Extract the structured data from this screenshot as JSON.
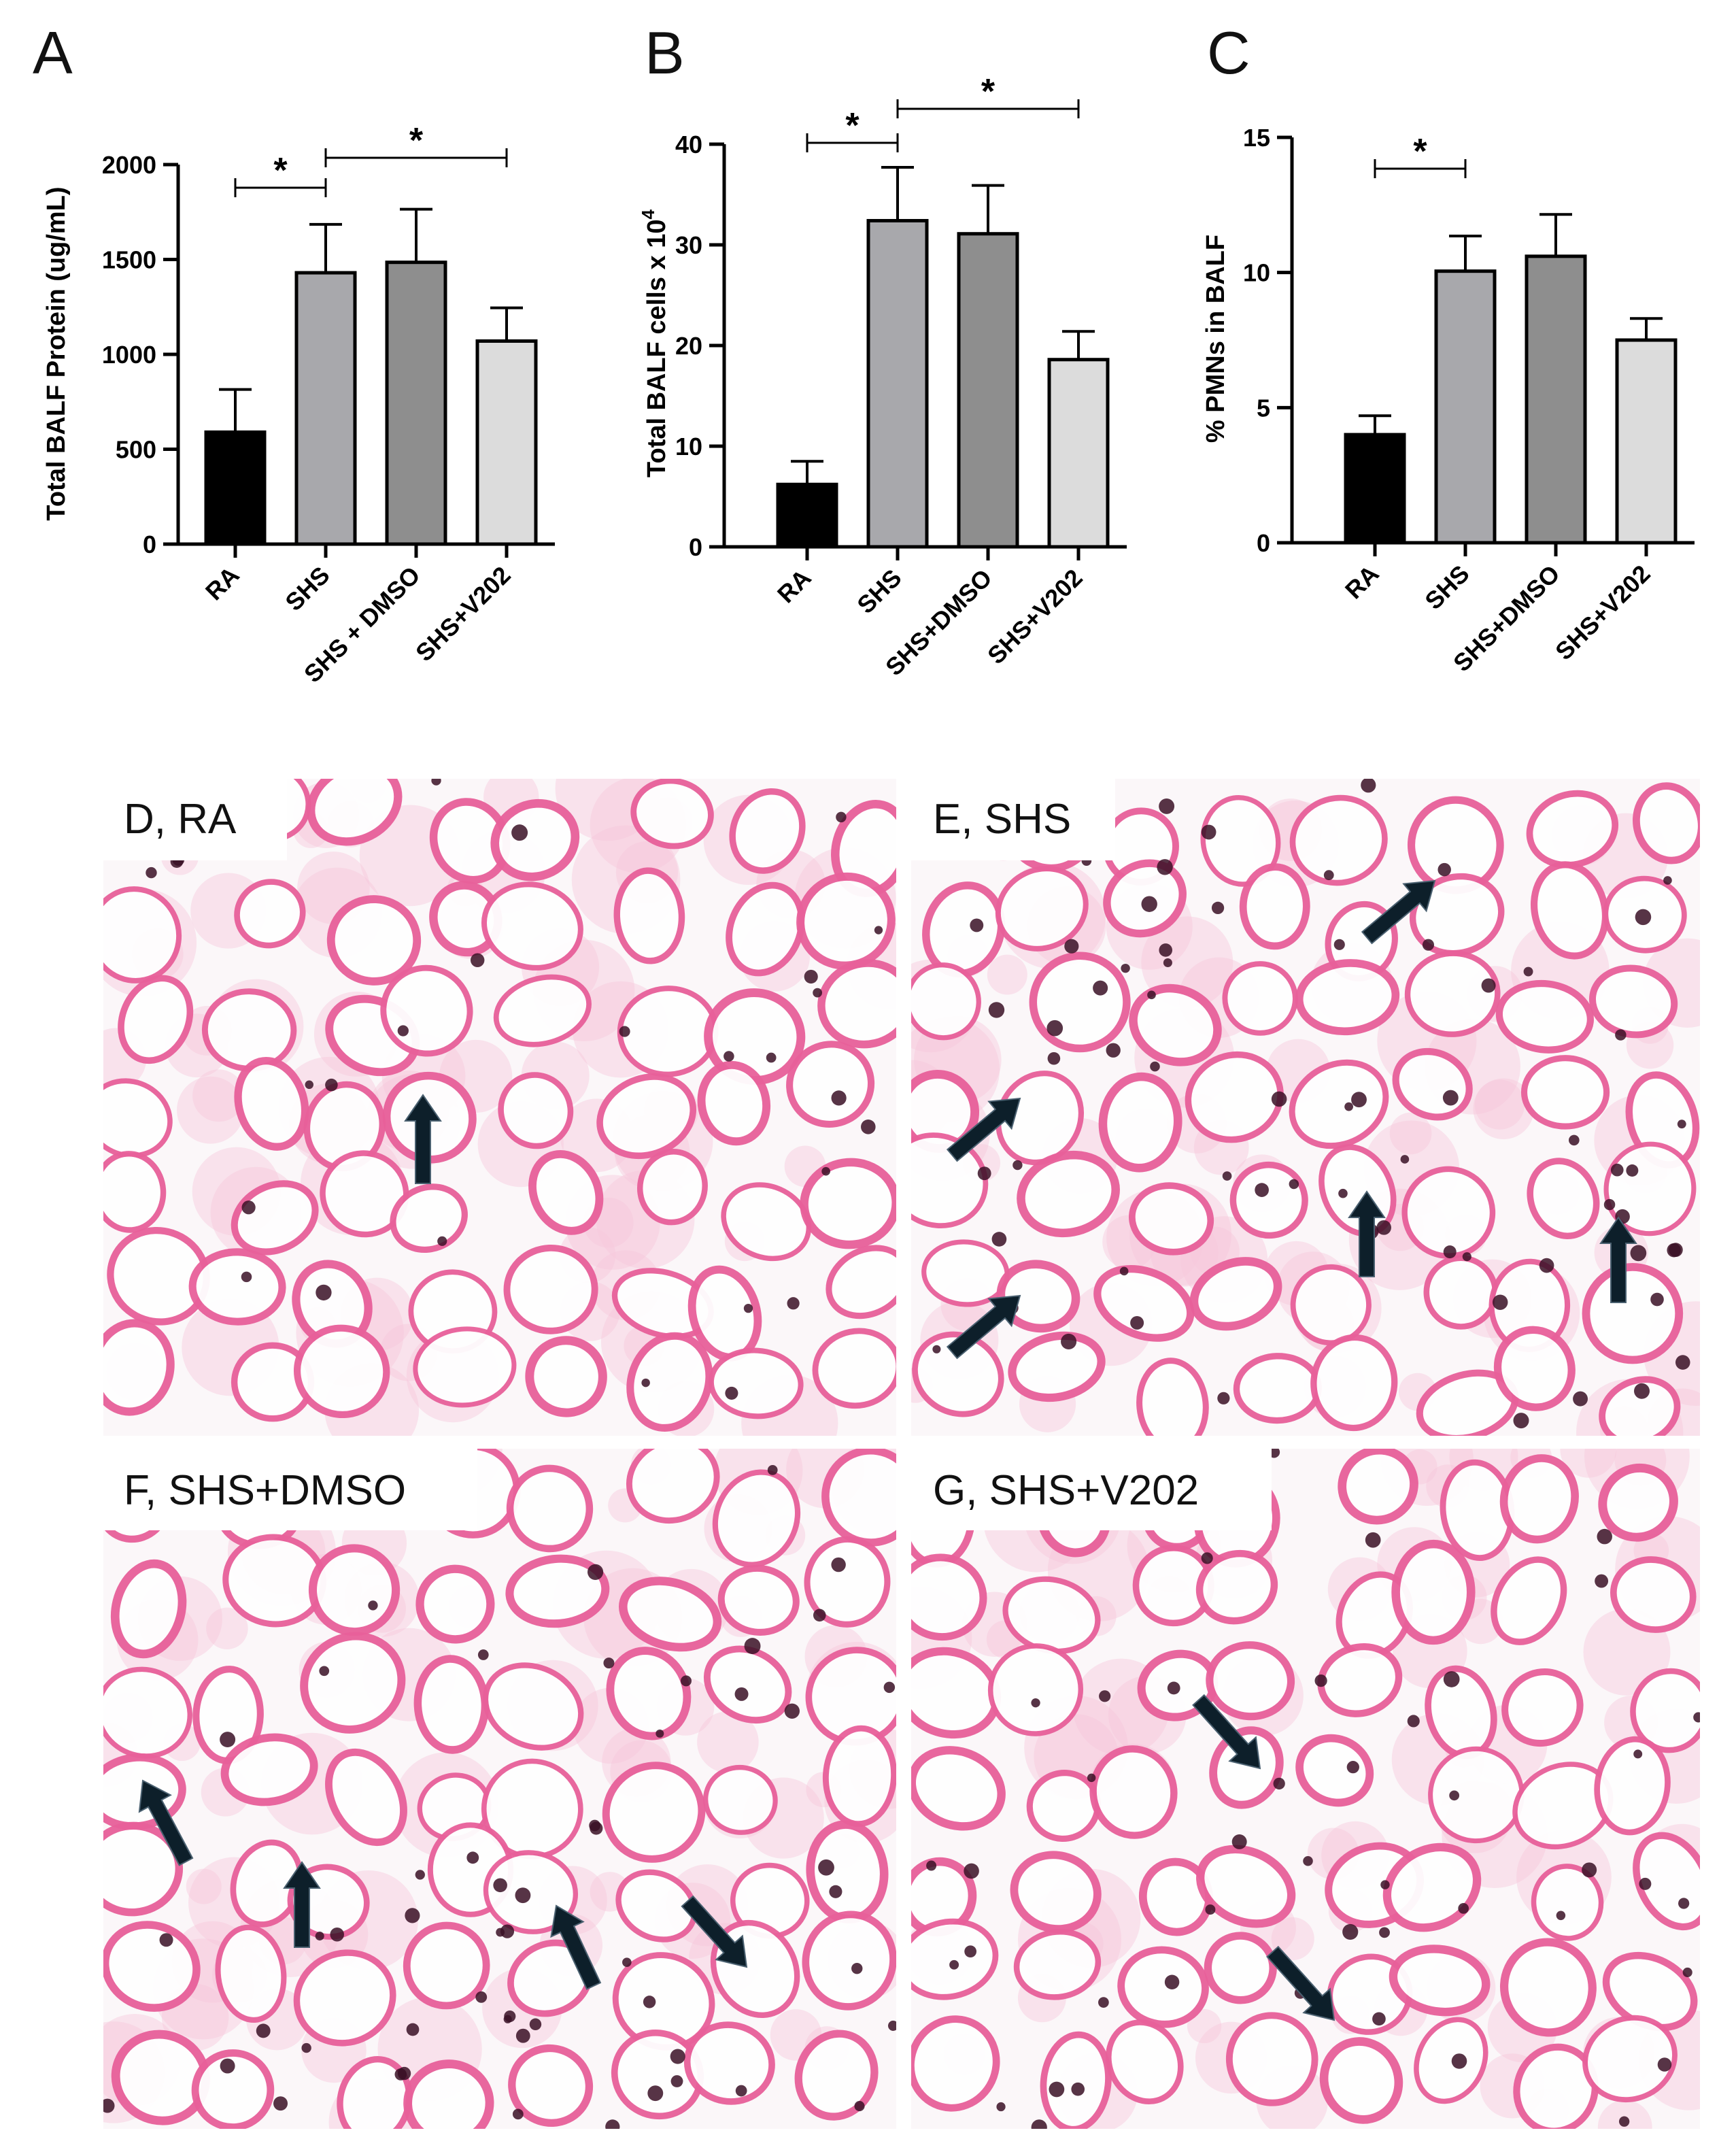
{
  "chart_data": [
    {
      "type": "bar",
      "panel": "A",
      "ylabel": "Total BALF Protein (ug/mL)",
      "categories": [
        "RA",
        "SHS",
        "SHS + DMSO",
        "SHS+V202"
      ],
      "values": [
        590,
        1430,
        1485,
        1070
      ],
      "errors": [
        225,
        255,
        280,
        175
      ],
      "ylim": [
        0,
        2000
      ],
      "yticks": [
        0,
        500,
        1000,
        1500,
        2000
      ],
      "colors": [
        "#000000",
        "#a8a8ac",
        "#8e8e8e",
        "#dcdcdc"
      ],
      "significance": [
        {
          "from": 0,
          "to": 1,
          "label": "*"
        },
        {
          "from": 1,
          "to": 3,
          "label": "*"
        }
      ]
    },
    {
      "type": "bar",
      "panel": "B",
      "ylabel": "Total BALF cells x 10",
      "ylabel_sup": "4",
      "categories": [
        "RA",
        "SHS",
        "SHS+DMSO",
        "SHS+V202"
      ],
      "values": [
        6.2,
        32.4,
        31.1,
        18.6
      ],
      "errors": [
        2.3,
        5.3,
        4.8,
        2.8
      ],
      "ylim": [
        0,
        40
      ],
      "yticks": [
        0,
        10,
        20,
        30,
        40
      ],
      "colors": [
        "#000000",
        "#a8a8ac",
        "#8e8e8e",
        "#dcdcdc"
      ],
      "significance": [
        {
          "from": 0,
          "to": 1,
          "label": "*"
        },
        {
          "from": 1,
          "to": 3,
          "label": "*"
        }
      ]
    },
    {
      "type": "bar",
      "panel": "C",
      "ylabel": "% PMNs in BALF",
      "categories": [
        "RA",
        "SHS",
        "SHS+DMSO",
        "SHS+V202"
      ],
      "values": [
        4.0,
        10.05,
        10.6,
        7.5
      ],
      "errors": [
        0.7,
        1.3,
        1.55,
        0.8
      ],
      "ylim": [
        0,
        15
      ],
      "yticks": [
        0,
        5,
        10,
        15
      ],
      "colors": [
        "#000000",
        "#a8a8ac",
        "#8e8e8e",
        "#dcdcdc"
      ],
      "significance": [
        {
          "from": 0,
          "to": 1,
          "label": "*"
        }
      ]
    }
  ],
  "micrographs": [
    {
      "label": "D, RA"
    },
    {
      "label": "E, SHS"
    },
    {
      "label": "F, SHS+DMSO"
    },
    {
      "label": "G, SHS+V202"
    }
  ],
  "colors": {
    "tissue_pink": "#e8609a",
    "tissue_light": "#f6c8dc",
    "nucleus": "#3a1026",
    "arrow": "#0d1f2a",
    "background": "#fbf7f9"
  }
}
